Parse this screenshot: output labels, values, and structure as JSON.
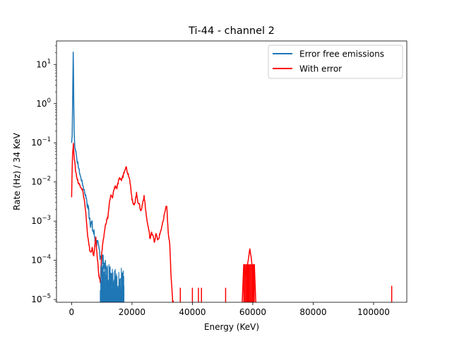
{
  "chart_data": {
    "type": "line",
    "title": "Ti-44 - channel 2",
    "xlabel": "Energy (KeV)",
    "ylabel": "Rate (Hz) / 34 KeV",
    "xlim": [
      -5000,
      111000
    ],
    "ylim_log10": [
      -5.07,
      1.6
    ],
    "yscale": "log",
    "grid": false,
    "legend_position": "top-right",
    "x_ticks": [
      0,
      20000,
      40000,
      60000,
      80000,
      100000
    ],
    "x_tick_labels": [
      "0",
      "20000",
      "40000",
      "60000",
      "80000",
      "100000"
    ],
    "y_ticks_log10": [
      -5,
      -4,
      -3,
      -2,
      -1,
      0,
      1
    ],
    "y_tick_bases": [
      "10",
      "10",
      "10",
      "10",
      "10",
      "10",
      "10"
    ],
    "y_tick_exponents": [
      "−5",
      "−4",
      "−3",
      "−2",
      "−1",
      "0",
      "1"
    ],
    "series": [
      {
        "name": "Error free emissions",
        "color": "#1f77b4",
        "x": [
          0,
          200,
          400,
          550,
          700,
          850,
          1000,
          1200,
          1500,
          1800,
          2100,
          2500,
          2900,
          3300,
          3800,
          4300,
          4800,
          5300,
          5800,
          6300,
          6800,
          7300,
          7800,
          8300,
          8800,
          9300,
          9800,
          10300,
          10800,
          11300,
          11800,
          12300,
          12800,
          13300,
          13800,
          14300,
          14800,
          15300,
          15800,
          16300,
          16800,
          17300
        ],
        "log10_y": [
          -1,
          -0.8,
          0.5,
          1.35,
          0.1,
          -0.7,
          -1.05,
          -1.15,
          -1.25,
          -1.45,
          -1.55,
          -1.7,
          -1.85,
          -1.95,
          -2.1,
          -2.25,
          -2.4,
          -2.6,
          -2.8,
          -3.0,
          -3.15,
          -3.3,
          -3.45,
          -3.55,
          -3.7,
          -3.8,
          -3.85,
          -4.0,
          -4.1,
          -4.2,
          -4.5,
          -4.9,
          -4.6,
          -4.4,
          -4.7,
          -4.95,
          -4.5,
          -4.8,
          -4.6,
          -4.95,
          -4.3,
          -4.9
        ]
      },
      {
        "name": "With error",
        "color": "#ff0000",
        "x": [
          0,
          300,
          600,
          900,
          1300,
          1800,
          2400,
          3000,
          3600,
          4200,
          4700,
          5200,
          5600,
          6000,
          6400,
          6800,
          7200,
          7600,
          8000,
          8300,
          8600,
          9000,
          9500,
          10000,
          10500,
          11000,
          11500,
          12000,
          12500,
          13000,
          13500,
          14000,
          14500,
          15000,
          15500,
          16000,
          16500,
          17000,
          17500,
          18000,
          18500,
          19000,
          19500,
          20000,
          20500,
          21000,
          21500,
          22000,
          22500,
          23000,
          23500,
          24000,
          24500,
          25000,
          25500,
          26000,
          26500,
          27000,
          27500,
          28000,
          28500,
          29000,
          29500,
          30000,
          30500,
          31000,
          31500,
          32000,
          32500,
          33000,
          33500,
          34000
        ],
        "log10_y": [
          -2.35,
          -1.3,
          -1.05,
          -1.4,
          -1.7,
          -1.9,
          -2.05,
          -2.1,
          -2.2,
          -2.45,
          -2.8,
          -3.3,
          -3.5,
          -3.75,
          -3.8,
          -3.65,
          -3.9,
          -3.75,
          -3.4,
          -3.75,
          -4.0,
          -4.35,
          -4.55,
          -3.8,
          -3.5,
          -3.2,
          -3.0,
          -2.9,
          -2.55,
          -2.35,
          -2.4,
          -2.2,
          -2.1,
          -2.15,
          -2.0,
          -1.9,
          -1.95,
          -1.85,
          -1.7,
          -1.6,
          -1.75,
          -1.85,
          -2.05,
          -2.45,
          -2.6,
          -2.5,
          -2.3,
          -2.5,
          -2.6,
          -2.75,
          -2.55,
          -2.35,
          -2.7,
          -3.0,
          -3.2,
          -3.45,
          -3.3,
          -3.35,
          -3.55,
          -3.3,
          -3.5,
          -3.4,
          -3.25,
          -3.1,
          -2.95,
          -2.7,
          -2.6,
          -3.3,
          -3.6,
          -4.5,
          -5.07,
          -5.07
        ]
      }
    ],
    "with_error_isolated_spikes": [
      {
        "x": 36000,
        "log10_y_top": -4.7
      },
      {
        "x": 40000,
        "log10_y_top": -4.7
      },
      {
        "x": 42000,
        "log10_y_top": -4.7
      },
      {
        "x": 43000,
        "log10_y_top": -4.7
      },
      {
        "x": 51000,
        "log10_y_top": -4.7
      },
      {
        "x": 106000,
        "log10_y_top": -4.65
      }
    ],
    "with_error_cluster_60k": {
      "x": [
        56500,
        57000,
        57500,
        58000,
        58500,
        59000,
        59500,
        60000,
        60500,
        61000
      ],
      "log10_y": [
        -5.07,
        -4.1,
        -4.4,
        -4.2,
        -4.0,
        -3.7,
        -3.95,
        -4.3,
        -4.1,
        -5.07
      ]
    }
  }
}
